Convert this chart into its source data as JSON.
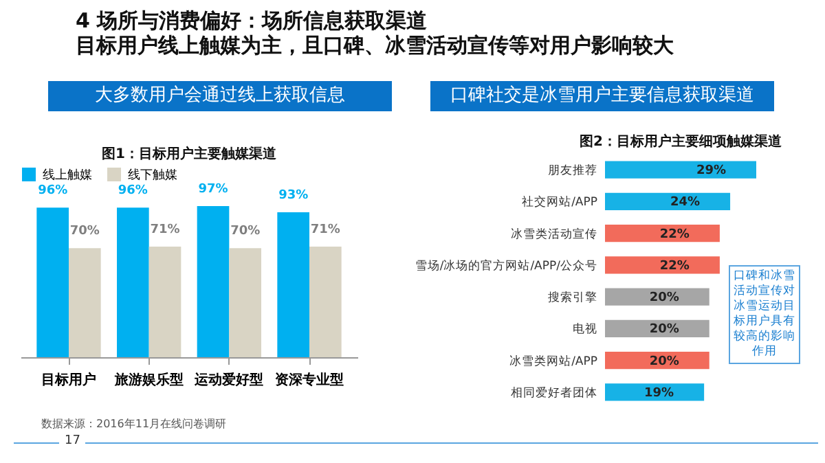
{
  "chart_data": [
    {
      "type": "bar",
      "title": "图1：目标用户主要触媒渠道",
      "categories": [
        "目标用户",
        "旅游娱乐型",
        "运动爱好型",
        "资深专业型"
      ],
      "legend": "top",
      "series": [
        {
          "name": "线上触媒",
          "color": "#00b0f0",
          "values": [
            96,
            96,
            97,
            93
          ],
          "value_labels": [
            "96%",
            "96%",
            "97%",
            "93%"
          ]
        },
        {
          "name": "线下触媒",
          "color": "#d9d4c4",
          "values": [
            70,
            71,
            70,
            71
          ],
          "value_labels": [
            "70%",
            "71%",
            "70%",
            "71%"
          ]
        }
      ],
      "annotations": [
        "4 场所与消费偏好：场所信息获取渠道",
        "目标用户线上触媒为主，且口碑、冰雪活动宣传等对用户影响较大",
        "大多数用户会通过线上获取信息",
        "数据来源：2016年11月在线问卷调研",
        "17"
      ]
    },
    {
      "type": "bar",
      "orientation": "horizontal",
      "title": "图2：目标用户主要细项触媒渠道",
      "value_labels": [
        "29%",
        "24%",
        "22%",
        "22%",
        "20%",
        "20%",
        "20%",
        "19%"
      ],
      "categories": [
        "朋友推荐",
        "社交网站/APP",
        "冰雪类活动宣传",
        "雪场/冰场的官方网站/APP/公众号",
        "搜索引擎",
        "电视",
        "冰雪类网站/APP",
        "相同爱好者团体"
      ],
      "values": [
        29,
        24,
        22,
        22,
        20,
        20,
        20,
        19
      ],
      "colors": [
        "#17b2e6",
        "#17b2e6",
        "#f26b5b",
        "#f26b5b",
        "#a6a6a6",
        "#a6a6a6",
        "#f26b5b",
        "#17b2e6"
      ],
      "annotations": [
        "口碑社交是冰雪用户主要信息获取渠道",
        "口碑和冰雪活动宣传对冰雪运动目标用户具有较高的影响作用"
      ]
    }
  ]
}
